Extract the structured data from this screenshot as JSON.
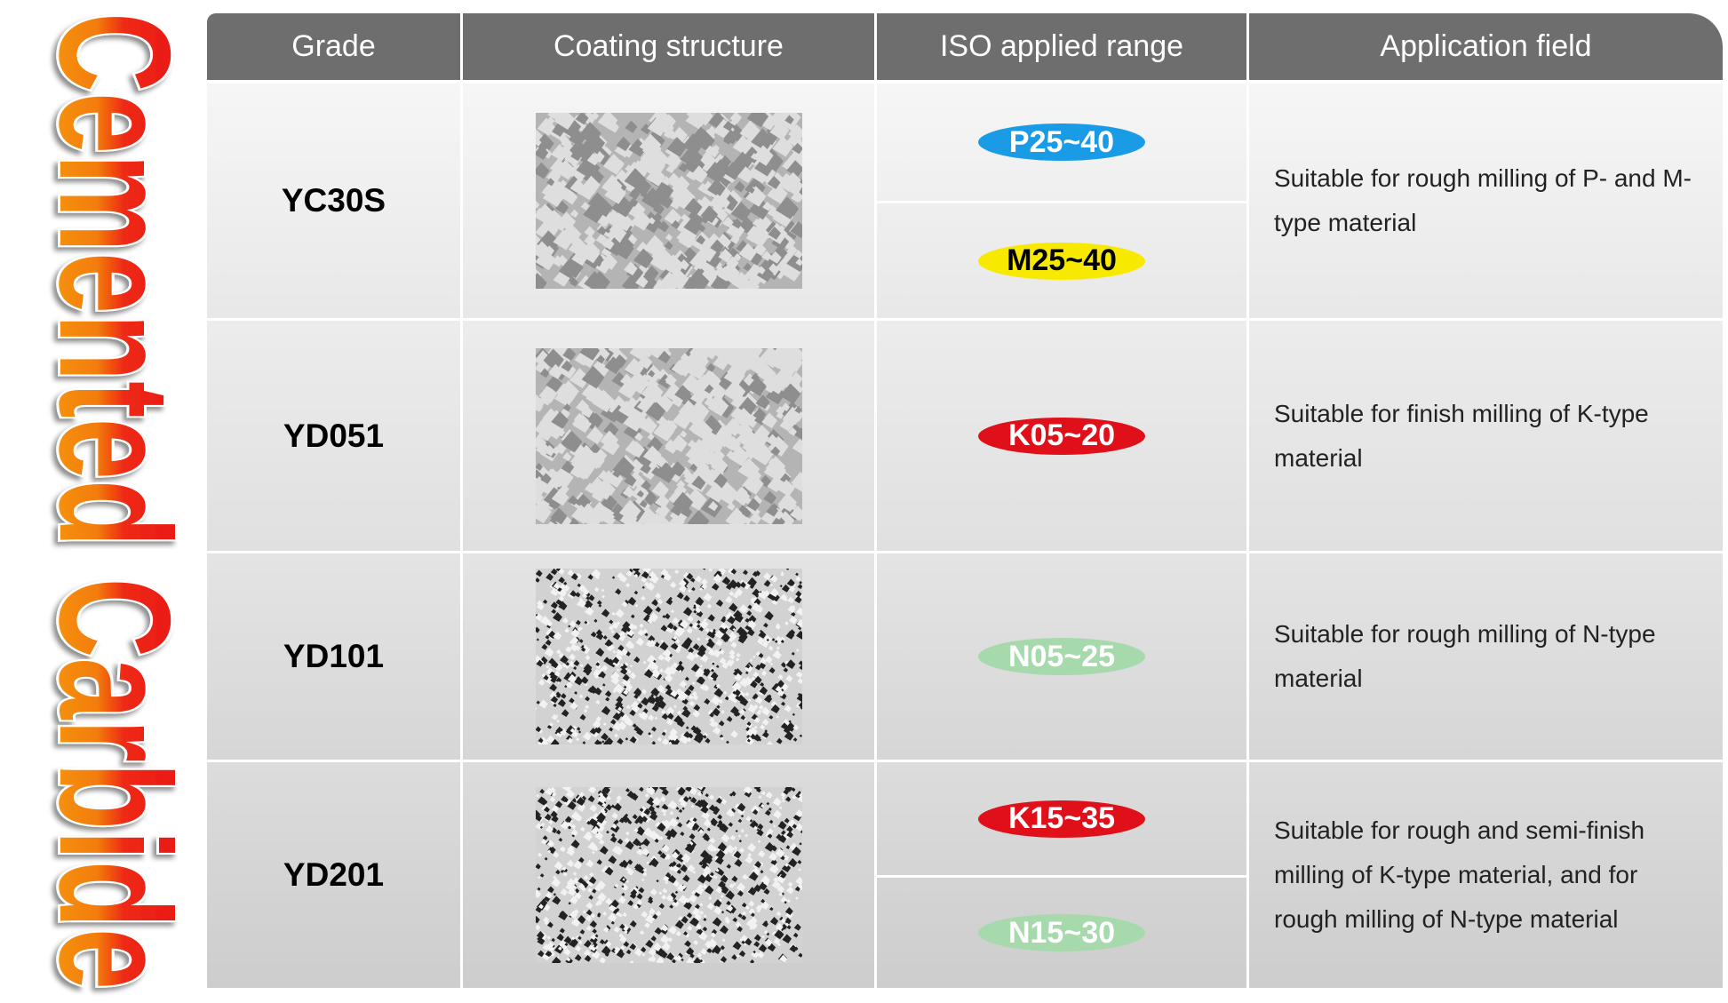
{
  "title": "Cemented Carbide",
  "table": {
    "headers": [
      "Grade",
      "Coating structure",
      "ISO applied range",
      "Application field"
    ],
    "rows": [
      {
        "grade": "YC30S",
        "ranges": [
          {
            "label": "P25~40",
            "color": "#1a9be6"
          },
          {
            "label": "M25~40",
            "color": "#f7ea00"
          }
        ],
        "application": "Suitable for rough milling of P- and M-type material"
      },
      {
        "grade": "YD051",
        "ranges": [
          {
            "label": "K05~20",
            "color": "#e0101a"
          }
        ],
        "application": "Suitable for finish milling of K-type material"
      },
      {
        "grade": "YD101",
        "ranges": [
          {
            "label": "N05~25",
            "color": "#a6d9ac"
          }
        ],
        "application": "Suitable for rough milling of N-type material"
      },
      {
        "grade": "YD201",
        "ranges": [
          {
            "label": "K15~35",
            "color": "#e0101a"
          },
          {
            "label": "N15~30",
            "color": "#a6d9ac"
          }
        ],
        "application": "Suitable for rough and semi-finish milling of K-type material, and for rough milling of N-type material"
      }
    ]
  }
}
